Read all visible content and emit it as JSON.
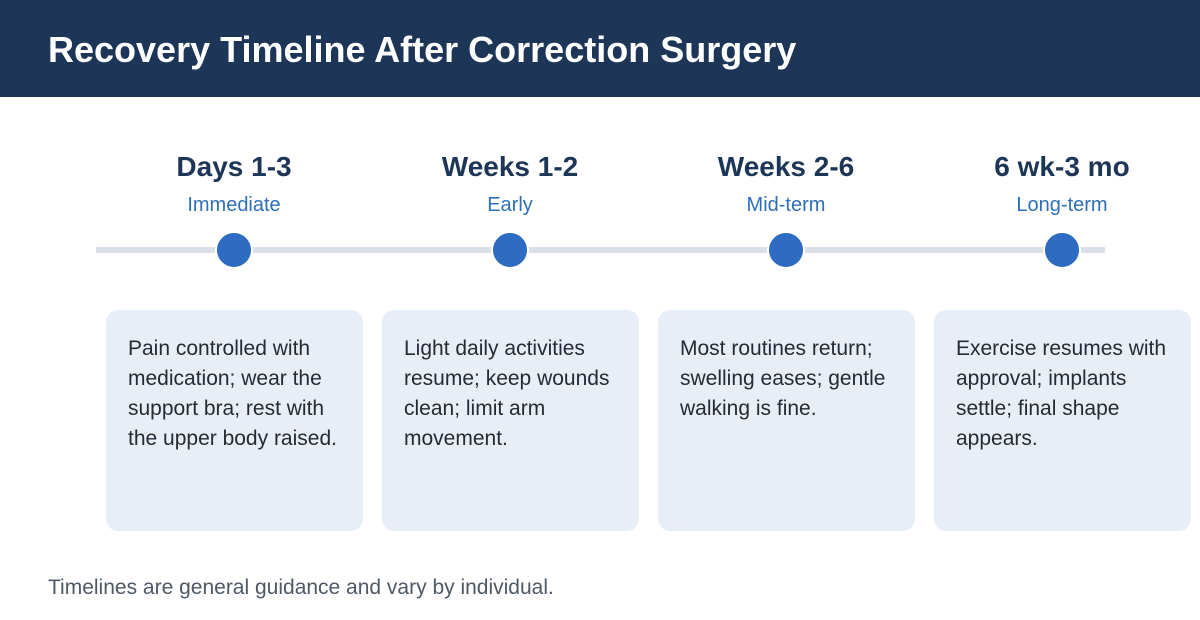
{
  "title": "Recovery Timeline After Correction Surgery",
  "stages": [
    {
      "period": "Days 1-3",
      "phase": "Immediate",
      "description": "Pain controlled with medication; wear the support bra; rest with the upper body raised."
    },
    {
      "period": "Weeks 1-2",
      "phase": "Early",
      "description": "Light daily activities resume; keep wounds clean; limit arm movement."
    },
    {
      "period": "Weeks 2-6",
      "phase": "Mid-term",
      "description": "Most routines return; swelling eases; gentle walking is fine."
    },
    {
      "period": "6 wk-3 mo",
      "phase": "Long-term",
      "description": "Exercise resumes with approval; implants settle; final shape appears."
    }
  ],
  "footnote": "Timelines are general guidance and vary by individual.",
  "colors": {
    "header_background": "#1d3557",
    "period_text": "#1d3557",
    "phase_text": "#2f6fb8",
    "marker": "#2d6cc0",
    "track": "#d9e0ea",
    "card_background": "#e8eef8"
  }
}
